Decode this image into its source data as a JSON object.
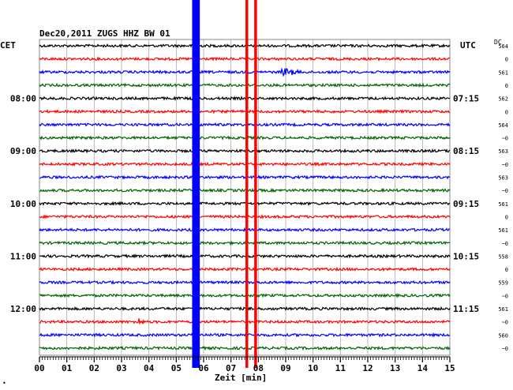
{
  "chart_data": {
    "type": "line",
    "title": "Dec20,2011   ZUGS HHZ BW 01",
    "xlabel": "Zeit [min]",
    "left_label": "CET",
    "right_label": "UTC",
    "dc_label": "DC",
    "bottom_mark": "•",
    "xlim": [
      0,
      15
    ],
    "x_ticks": [
      "00",
      "01",
      "02",
      "03",
      "04",
      "05",
      "06",
      "07",
      "08",
      "09",
      "10",
      "11",
      "12",
      "13",
      "14",
      "15"
    ],
    "grid": true,
    "line_colors": [
      "#000000",
      "#ff0000",
      "#0000ff",
      "#006400"
    ],
    "hour_labels_left": [
      {
        "row": 4,
        "text": "08:00"
      },
      {
        "row": 8,
        "text": "09:00"
      },
      {
        "row": 12,
        "text": "10:00"
      },
      {
        "row": 16,
        "text": "11:00"
      },
      {
        "row": 20,
        "text": "12:00"
      }
    ],
    "hour_labels_right": [
      {
        "row": 4,
        "text": "07:15"
      },
      {
        "row": 8,
        "text": "08:15"
      },
      {
        "row": 12,
        "text": "09:15"
      },
      {
        "row": 16,
        "text": "10:15"
      },
      {
        "row": 20,
        "text": "11:15"
      }
    ],
    "dc_values": [
      "564",
      "0",
      "561",
      "0",
      "562",
      "0",
      "564",
      "~0",
      "563",
      "~0",
      "563",
      "~0",
      "561",
      "0",
      "561",
      "~0",
      "558",
      "0",
      "559",
      "~0",
      "561",
      "~0",
      "560",
      "~0"
    ],
    "rows": 24,
    "events": [
      {
        "row": 2,
        "x": 8.85,
        "amplitude": 6,
        "length": 1.0,
        "color": "#0000ff"
      },
      {
        "row": 21,
        "x": 3.55,
        "amplitude": 7,
        "length": 0.4,
        "color": "#ff0000"
      },
      {
        "row": 5,
        "x": 5.7,
        "amplitude": 4,
        "length": 0.3,
        "color": "#0000ff"
      }
    ],
    "saturated_columns": [
      {
        "x": 5.72,
        "color": "#0000ff",
        "width_min": 0.28
      },
      {
        "x": 7.58,
        "color": "#ff0000",
        "width_min": 0.1
      },
      {
        "x": 7.9,
        "color": "#ff0000",
        "width_min": 0.1
      }
    ]
  }
}
